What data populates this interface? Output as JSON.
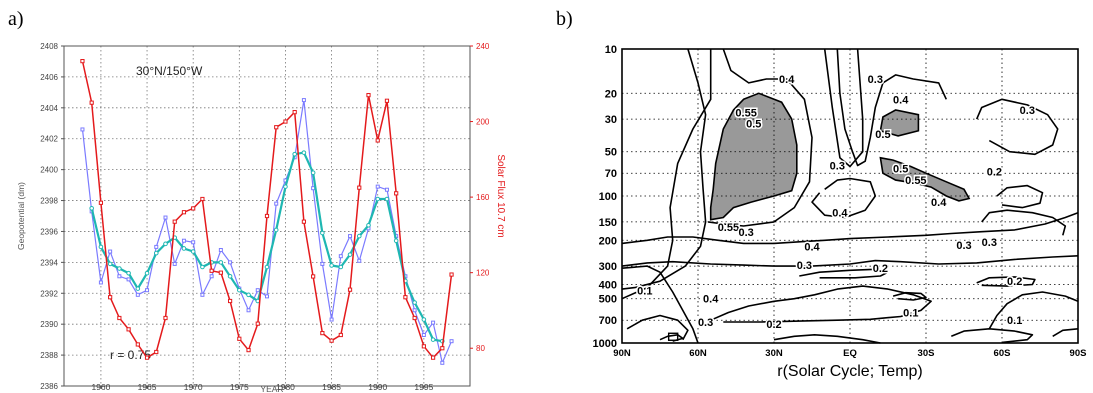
{
  "panels": {
    "a_label": "a)",
    "b_label": "b)"
  },
  "chart_data": [
    {
      "type": "line",
      "title": "30°N/150°W",
      "annotation": "r  =  0.75",
      "xlabel": "YEAR",
      "ylabel": "Geopotential (dm)",
      "y2label": "Solar Flux 10.7 cm",
      "xlim": [
        1956,
        2000
      ],
      "ylim": [
        2386,
        2408
      ],
      "y2lim": [
        60,
        240
      ],
      "xticks": [
        "1960",
        "1965",
        "1970",
        "1975",
        "1980",
        "1985",
        "1990",
        "1995"
      ],
      "yticks": [
        "2386",
        "2388",
        "2390",
        "2392",
        "2394",
        "2396",
        "2398",
        "2400",
        "2402",
        "2404",
        "2406",
        "2408"
      ],
      "y2ticks": [
        "80",
        "120",
        "160",
        "200",
        "240"
      ],
      "grid": true,
      "colors": {
        "geopotential": "#7b7bff",
        "smoothed": "#1fb7b2",
        "solar": "#e41a1c"
      },
      "series": [
        {
          "axis": "left",
          "marker": "square",
          "x": [
            1958,
            1959,
            1960,
            1961,
            1962,
            1963,
            1964,
            1965,
            1966,
            1967,
            1968,
            1969,
            1970,
            1971,
            1972,
            1973,
            1974,
            1975,
            1976,
            1977,
            1978,
            1979,
            1980,
            1981,
            1982,
            1983,
            1984,
            1985,
            1986,
            1987,
            1988,
            1989,
            1990,
            1991,
            1992,
            1993,
            1994,
            1995,
            1996,
            1997,
            1998
          ],
          "values": [
            2402.6,
            2397.3,
            2392.7,
            2394.7,
            2393.1,
            2392.9,
            2391.9,
            2392.2,
            2395.0,
            2396.9,
            2393.9,
            2395.4,
            2395.3,
            2391.9,
            2393.1,
            2394.8,
            2394.0,
            2392.3,
            2390.9,
            2392.2,
            2391.8,
            2397.8,
            2399.3,
            2400.8,
            2404.5,
            2398.8,
            2393.9,
            2390.3,
            2394.4,
            2395.7,
            2394.1,
            2396.2,
            2398.9,
            2398.7,
            2395.7,
            2393.1,
            2390.9,
            2389.3,
            2390.1,
            2387.5,
            2388.9
          ]
        },
        {
          "axis": "left",
          "marker": "circle",
          "x": [
            1959,
            1960,
            1961,
            1962,
            1963,
            1964,
            1965,
            1966,
            1967,
            1968,
            1969,
            1970,
            1971,
            1972,
            1973,
            1974,
            1975,
            1976,
            1977,
            1978,
            1979,
            1980,
            1981,
            1982,
            1983,
            1984,
            1985,
            1986,
            1987,
            1988,
            1989,
            1990,
            1991,
            1992,
            1993,
            1994,
            1995,
            1996,
            1997
          ],
          "values": [
            2397.5,
            2395.0,
            2393.9,
            2393.6,
            2393.3,
            2392.3,
            2393.3,
            2394.6,
            2395.2,
            2395.6,
            2394.9,
            2394.7,
            2393.7,
            2394.0,
            2394.0,
            2393.1,
            2392.2,
            2391.9,
            2391.5,
            2393.7,
            2396.1,
            2398.9,
            2401.0,
            2401.1,
            2399.8,
            2395.9,
            2393.8,
            2393.7,
            2394.5,
            2395.7,
            2396.4,
            2398.1,
            2398.1,
            2395.4,
            2392.8,
            2391.4,
            2390.3,
            2389.0,
            2388.9
          ]
        },
        {
          "axis": "right",
          "marker": "square",
          "x": [
            1958,
            1959,
            1960,
            1961,
            1962,
            1963,
            1964,
            1965,
            1966,
            1967,
            1968,
            1969,
            1970,
            1971,
            1972,
            1973,
            1974,
            1975,
            1976,
            1977,
            1978,
            1979,
            1980,
            1981,
            1982,
            1983,
            1984,
            1985,
            1986,
            1987,
            1988,
            1989,
            1990,
            1991,
            1992,
            1993,
            1994,
            1995,
            1996,
            1997,
            1998
          ],
          "values": [
            232,
            210,
            157,
            107,
            96,
            90,
            82,
            75,
            78,
            96,
            147,
            152,
            154,
            159,
            121,
            120,
            105,
            85,
            79,
            93,
            150,
            197,
            200,
            205,
            147,
            118,
            88,
            84,
            87,
            111,
            165,
            214,
            190,
            211,
            162,
            107,
            96,
            81,
            75,
            80,
            119
          ]
        }
      ]
    },
    {
      "type": "heatmap",
      "xlabel": "r(Solar Cycle; Temp)",
      "xticks": [
        "90N",
        "60N",
        "30N",
        "EQ",
        "30S",
        "60S",
        "90S"
      ],
      "yticks": [
        "10",
        "20",
        "30",
        "50",
        "70",
        "100",
        "150",
        "200",
        "300",
        "400",
        "500",
        "700",
        "1000"
      ],
      "yscale": "log",
      "ylim": [
        1000,
        10
      ],
      "xlim": [
        90,
        -90
      ],
      "grid": true,
      "shade_color": "#999999",
      "contour_labels": [
        {
          "text": "0.4",
          "lat": 25,
          "p": 16
        },
        {
          "text": "0.3",
          "lat": -10,
          "p": 16
        },
        {
          "text": "0.4",
          "lat": -20,
          "p": 22
        },
        {
          "text": "0.3",
          "lat": -70,
          "p": 26
        },
        {
          "text": "0.55",
          "lat": 41,
          "p": 27
        },
        {
          "text": "0.5",
          "lat": 38,
          "p": 32
        },
        {
          "text": "0.5",
          "lat": -13,
          "p": 38
        },
        {
          "text": "0.3",
          "lat": 5,
          "p": 62
        },
        {
          "text": "0.5",
          "lat": -20,
          "p": 65
        },
        {
          "text": "0.55",
          "lat": -26,
          "p": 78
        },
        {
          "text": "0.2",
          "lat": -57,
          "p": 68
        },
        {
          "text": "0.4",
          "lat": -35,
          "p": 110
        },
        {
          "text": "0.4",
          "lat": 4,
          "p": 130
        },
        {
          "text": "0.55",
          "lat": 48,
          "p": 162
        },
        {
          "text": "0.3",
          "lat": 41,
          "p": 176
        },
        {
          "text": "0.4",
          "lat": 15,
          "p": 220
        },
        {
          "text": "0.3",
          "lat": -45,
          "p": 215
        },
        {
          "text": "0.3",
          "lat": -55,
          "p": 205
        },
        {
          "text": "0.3",
          "lat": 18,
          "p": 295
        },
        {
          "text": "0.2",
          "lat": -12,
          "p": 310
        },
        {
          "text": "0.2",
          "lat": -65,
          "p": 380
        },
        {
          "text": "0.1",
          "lat": 81,
          "p": 440
        },
        {
          "text": "0.4",
          "lat": 55,
          "p": 500
        },
        {
          "text": "0.1",
          "lat": -24,
          "p": 620
        },
        {
          "text": "0.3",
          "lat": 57,
          "p": 720
        },
        {
          "text": "0.2",
          "lat": 30,
          "p": 740
        },
        {
          "text": "0.1",
          "lat": -65,
          "p": 700
        }
      ]
    }
  ]
}
